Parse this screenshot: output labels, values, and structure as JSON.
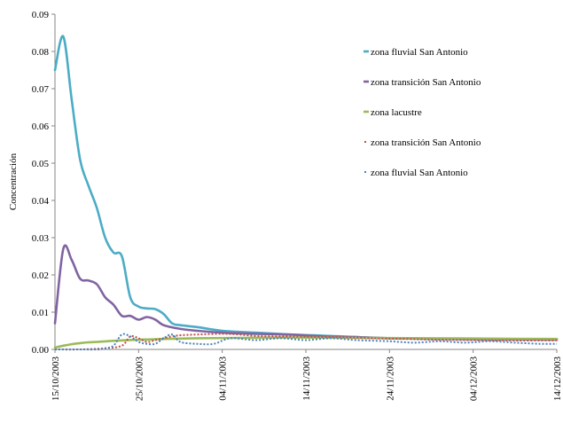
{
  "chart_data": {
    "type": "line",
    "title": "",
    "xlabel": "",
    "ylabel": "Concentración",
    "ylim": [
      0,
      0.09
    ],
    "y_ticks": [
      "0.00",
      "0.01",
      "0.02",
      "0.03",
      "0.04",
      "0.05",
      "0.06",
      "0.07",
      "0.08",
      "0.09"
    ],
    "xlim": [
      "2003-10-15",
      "2003-12-14"
    ],
    "x_ticks": [
      "15/10/2003",
      "25/10/2003",
      "04/11/2003",
      "14/11/2003",
      "24/11/2003",
      "04/12/2003",
      "14/12/2003"
    ],
    "grid": false,
    "legend": "top-right",
    "series": [
      {
        "name": "zona fluvial San Antonio",
        "color": "#4bacc6",
        "style": "solid",
        "x": [
          "2003-10-15",
          "2003-10-16",
          "2003-10-17",
          "2003-10-18",
          "2003-10-19",
          "2003-10-20",
          "2003-10-21",
          "2003-10-22",
          "2003-10-23",
          "2003-10-24",
          "2003-10-25",
          "2003-10-26",
          "2003-10-27",
          "2003-10-28",
          "2003-10-29",
          "2003-10-30",
          "2003-11-01",
          "2003-11-04",
          "2003-11-08",
          "2003-11-12",
          "2003-11-16",
          "2003-11-20",
          "2003-11-24",
          "2003-12-01",
          "2003-12-08",
          "2003-12-14"
        ],
        "values": [
          0.075,
          0.084,
          0.067,
          0.051,
          0.044,
          0.038,
          0.03,
          0.026,
          0.025,
          0.014,
          0.0115,
          0.011,
          0.0108,
          0.0095,
          0.007,
          0.0065,
          0.006,
          0.005,
          0.0045,
          0.004,
          0.0037,
          0.0033,
          0.003,
          0.0028,
          0.0027,
          0.0027
        ]
      },
      {
        "name": "zona transición San Antonio",
        "color": "#8064a2",
        "style": "solid",
        "x": [
          "2003-10-15",
          "2003-10-16",
          "2003-10-17",
          "2003-10-18",
          "2003-10-19",
          "2003-10-20",
          "2003-10-21",
          "2003-10-22",
          "2003-10-23",
          "2003-10-24",
          "2003-10-25",
          "2003-10-26",
          "2003-10-27",
          "2003-10-28",
          "2003-10-30",
          "2003-11-01",
          "2003-11-04",
          "2003-11-08",
          "2003-11-12",
          "2003-11-16",
          "2003-11-20",
          "2003-11-24",
          "2003-12-01",
          "2003-12-08",
          "2003-12-14"
        ],
        "values": [
          0.007,
          0.027,
          0.024,
          0.019,
          0.0185,
          0.0175,
          0.014,
          0.012,
          0.009,
          0.009,
          0.008,
          0.0087,
          0.008,
          0.0065,
          0.0055,
          0.005,
          0.0045,
          0.0042,
          0.004,
          0.0035,
          0.0033,
          0.003,
          0.0028,
          0.0027,
          0.0026
        ]
      },
      {
        "name": "zona lacustre",
        "color": "#9bbb59",
        "style": "solid",
        "x": [
          "2003-10-15",
          "2003-10-16",
          "2003-10-17",
          "2003-10-18",
          "2003-10-19",
          "2003-10-20",
          "2003-10-22",
          "2003-10-25",
          "2003-10-28",
          "2003-11-01",
          "2003-11-06",
          "2003-11-12",
          "2003-11-20",
          "2003-11-28",
          "2003-12-06",
          "2003-12-14"
        ],
        "values": [
          0.0005,
          0.001,
          0.0014,
          0.0017,
          0.0019,
          0.002,
          0.0023,
          0.0026,
          0.0028,
          0.003,
          0.0031,
          0.0032,
          0.0031,
          0.003,
          0.0029,
          0.0028
        ]
      },
      {
        "name": "zona transición San Antonio",
        "color": "#c0504d",
        "style": "dotted",
        "x": [
          "2003-10-15",
          "2003-10-18",
          "2003-10-21",
          "2003-10-23",
          "2003-10-24",
          "2003-10-25",
          "2003-10-26",
          "2003-10-27",
          "2003-10-28",
          "2003-10-29",
          "2003-10-30",
          "2003-11-01",
          "2003-11-04",
          "2003-11-06",
          "2003-11-08",
          "2003-11-10",
          "2003-11-14",
          "2003-11-18",
          "2003-11-22",
          "2003-11-26",
          "2003-11-30",
          "2003-12-04",
          "2003-12-08",
          "2003-12-14"
        ],
        "values": [
          0.0,
          0.0,
          0.0003,
          0.001,
          0.0035,
          0.003,
          0.002,
          0.0025,
          0.003,
          0.0035,
          0.0038,
          0.004,
          0.0042,
          0.004,
          0.0036,
          0.0035,
          0.0034,
          0.0033,
          0.003,
          0.0028,
          0.0026,
          0.0025,
          0.0024,
          0.0024
        ]
      },
      {
        "name": "zona fluvial San Antonio",
        "color": "#4f81bd",
        "style": "dotted",
        "x": [
          "2003-10-15",
          "2003-10-18",
          "2003-10-20",
          "2003-10-21",
          "2003-10-22",
          "2003-10-23",
          "2003-10-24",
          "2003-10-25",
          "2003-10-26",
          "2003-10-27",
          "2003-10-28",
          "2003-10-29",
          "2003-10-30",
          "2003-11-01",
          "2003-11-03",
          "2003-11-05",
          "2003-11-08",
          "2003-11-11",
          "2003-11-14",
          "2003-11-17",
          "2003-11-20",
          "2003-11-24",
          "2003-11-27",
          "2003-11-30",
          "2003-12-03",
          "2003-12-06",
          "2003-12-09",
          "2003-12-12",
          "2003-12-14"
        ],
        "values": [
          0.0,
          0.0,
          0.0,
          0.0003,
          0.001,
          0.004,
          0.0035,
          0.002,
          0.0015,
          0.0015,
          0.003,
          0.004,
          0.002,
          0.0015,
          0.0015,
          0.003,
          0.0025,
          0.003,
          0.0025,
          0.003,
          0.0025,
          0.0022,
          0.0018,
          0.0022,
          0.0018,
          0.0022,
          0.0018,
          0.0015,
          0.0015
        ]
      }
    ]
  }
}
